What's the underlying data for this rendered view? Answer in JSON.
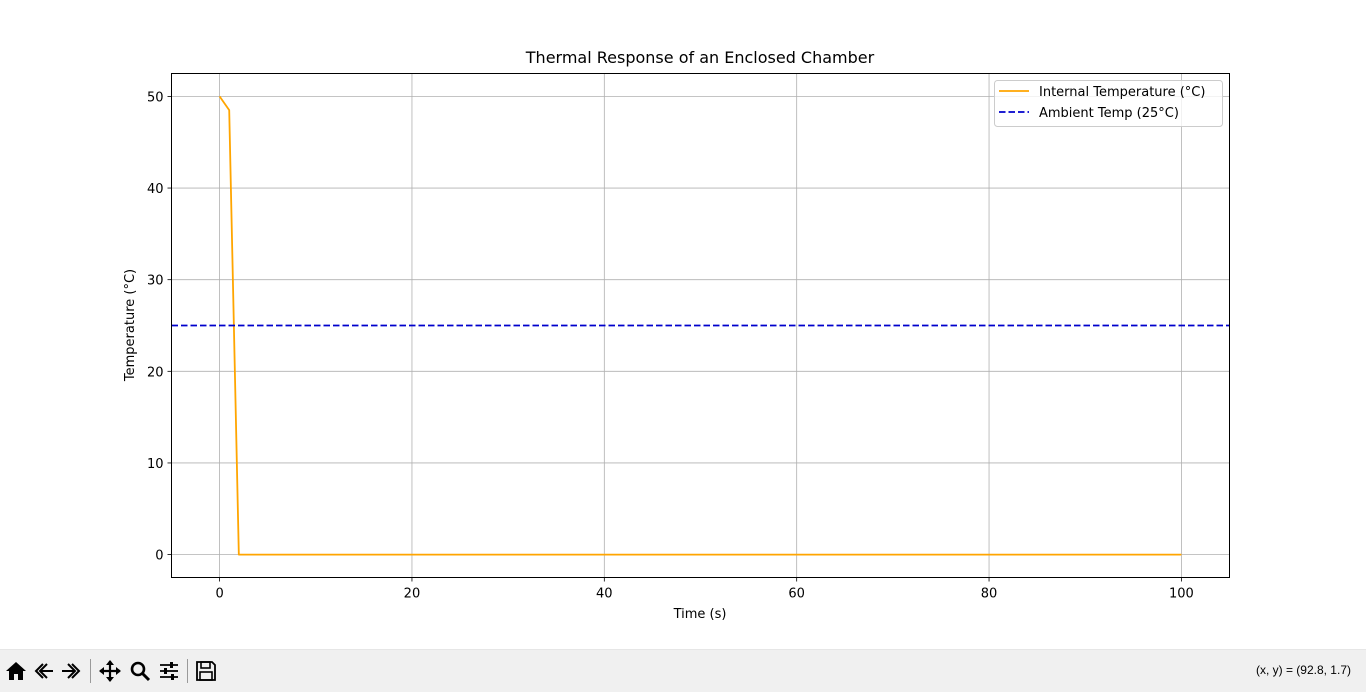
{
  "chart_data": {
    "type": "line",
    "title": "Thermal Response of an Enclosed Chamber",
    "xlabel": "Time (s)",
    "ylabel": "Temperature (°C)",
    "xlim": [
      -5,
      105
    ],
    "ylim": [
      -2.5,
      52.5
    ],
    "xticks": [
      0,
      20,
      40,
      60,
      80,
      100
    ],
    "yticks": [
      0,
      10,
      20,
      30,
      40,
      50
    ],
    "grid": true,
    "legend_position": "top-right",
    "series": [
      {
        "name": "Internal Temperature (°C)",
        "color": "#ffa500",
        "style": "solid",
        "x": [
          0,
          1,
          2,
          100
        ],
        "y": [
          50,
          48.5,
          0,
          0
        ]
      },
      {
        "name": "Ambient Temp (25°C)",
        "color": "#0000cc",
        "style": "dashed",
        "type": "hline",
        "y": 25
      }
    ]
  },
  "toolbar": {
    "buttons": [
      {
        "name": "home-button",
        "icon": "home-icon"
      },
      {
        "name": "back-button",
        "icon": "back-arrow-icon"
      },
      {
        "name": "forward-button",
        "icon": "forward-arrow-icon"
      },
      {
        "name": "pan-button",
        "icon": "move-icon"
      },
      {
        "name": "zoom-button",
        "icon": "magnifier-icon"
      },
      {
        "name": "configure-subplots-button",
        "icon": "sliders-icon"
      },
      {
        "name": "save-button",
        "icon": "floppy-disk-icon"
      }
    ],
    "coordinates": "(x, y) = (92.8, 1.7)"
  }
}
